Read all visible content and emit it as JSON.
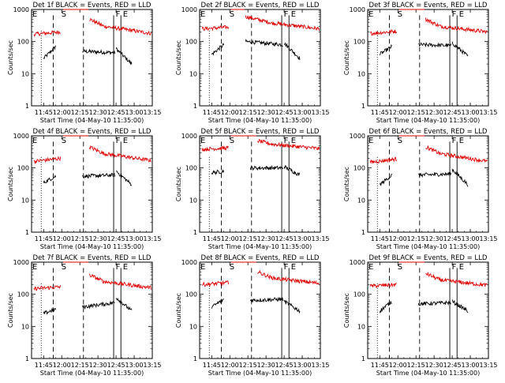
{
  "figure": {
    "xlabel": "Start Time (04-May-10 11:35:00)",
    "ylabel": "Counts/sec",
    "x_tick_labels": [
      "11:45",
      "12:00",
      "12:15",
      "12:30",
      "12:45",
      "13:00",
      "13:15"
    ],
    "y_tick_labels": [
      "1",
      "10",
      "100",
      "1000"
    ],
    "colors": {
      "events": "#000000",
      "lld": "#e00000"
    }
  },
  "chart_data": [
    {
      "type": "line",
      "title": "Det 1f BLACK = Events, RED = LLD",
      "xlabel": "Start Time (04-May-10 11:35:00)",
      "ylabel": "Counts/sec",
      "y_scale": "log",
      "ylim": [
        1,
        1000
      ],
      "x_range_minutes": [
        0,
        100
      ],
      "markers": [
        {
          "label": "E",
          "x": 0
        },
        {
          "label": "S",
          "x": 25
        },
        {
          "label": "F",
          "x": 70
        },
        {
          "label": "E",
          "x": 76
        }
      ],
      "series": [
        {
          "name": "Events",
          "segments": [
            {
              "x": [
                10,
                20
              ],
              "y": [
                30,
                70
              ]
            },
            {
              "x": [
                42,
                69
              ],
              "y": [
                50,
                45
              ]
            },
            {
              "x": [
                70,
                83
              ],
              "y": [
                60,
                20
              ]
            }
          ]
        },
        {
          "name": "LLD",
          "segments": [
            {
              "x": [
                2,
                24
              ],
              "y": [
                170,
                200
              ]
            },
            {
              "x": [
                26,
                47
              ],
              "y": [
                1000,
                1000
              ]
            },
            {
              "x": [
                48,
                60
              ],
              "y": [
                500,
                300
              ]
            },
            {
              "x": [
                60,
                99
              ],
              "y": [
                300,
                180
              ]
            }
          ]
        }
      ]
    },
    {
      "type": "line",
      "title": "Det 2f BLACK = Events, RED = LLD",
      "xlabel": "Start Time (04-May-10 11:35:00)",
      "ylabel": "Counts/sec",
      "y_scale": "log",
      "ylim": [
        1,
        1000
      ],
      "x_range_minutes": [
        0,
        100
      ],
      "markers": [
        {
          "label": "E",
          "x": 0
        },
        {
          "label": "S",
          "x": 25
        },
        {
          "label": "F",
          "x": 70
        },
        {
          "label": "E",
          "x": 76
        }
      ],
      "series": [
        {
          "name": "Events",
          "segments": [
            {
              "x": [
                10,
                20
              ],
              "y": [
                40,
                80
              ]
            },
            {
              "x": [
                38,
                69
              ],
              "y": [
                100,
                80
              ]
            },
            {
              "x": [
                70,
                83
              ],
              "y": [
                90,
                30
              ]
            }
          ]
        },
        {
          "name": "LLD",
          "segments": [
            {
              "x": [
                2,
                24
              ],
              "y": [
                250,
                280
              ]
            },
            {
              "x": [
                26,
                37
              ],
              "y": [
                1000,
                1000
              ]
            },
            {
              "x": [
                38,
                60
              ],
              "y": [
                600,
                380
              ]
            },
            {
              "x": [
                60,
                99
              ],
              "y": [
                380,
                250
              ]
            }
          ]
        }
      ]
    },
    {
      "type": "line",
      "title": "Det 3f BLACK = Events, RED = LLD",
      "xlabel": "Start Time (04-May-10 11:35:00)",
      "ylabel": "Counts/sec",
      "y_scale": "log",
      "ylim": [
        1,
        1000
      ],
      "x_range_minutes": [
        0,
        100
      ],
      "markers": [
        {
          "label": "E",
          "x": 0
        },
        {
          "label": "S",
          "x": 25
        },
        {
          "label": "F",
          "x": 70
        },
        {
          "label": "E",
          "x": 76
        }
      ],
      "series": [
        {
          "name": "Events",
          "segments": [
            {
              "x": [
                10,
                20
              ],
              "y": [
                40,
                70
              ]
            },
            {
              "x": [
                42,
                69
              ],
              "y": [
                80,
                75
              ]
            },
            {
              "x": [
                70,
                83
              ],
              "y": [
                90,
                35
              ]
            }
          ]
        },
        {
          "name": "LLD",
          "segments": [
            {
              "x": [
                2,
                24
              ],
              "y": [
                180,
                210
              ]
            },
            {
              "x": [
                26,
                47
              ],
              "y": [
                1000,
                1000
              ]
            },
            {
              "x": [
                48,
                60
              ],
              "y": [
                500,
                300
              ]
            },
            {
              "x": [
                60,
                99
              ],
              "y": [
                300,
                200
              ]
            }
          ]
        }
      ]
    },
    {
      "type": "line",
      "title": "Det 4f BLACK = Events, RED = LLD",
      "xlabel": "Start Time (04-May-10 11:35:00)",
      "ylabel": "Counts/sec",
      "y_scale": "log",
      "ylim": [
        1,
        1000
      ],
      "x_range_minutes": [
        0,
        100
      ],
      "markers": [
        {
          "label": "E",
          "x": 0
        },
        {
          "label": "S",
          "x": 25
        },
        {
          "label": "F",
          "x": 70
        },
        {
          "label": "E",
          "x": 76
        }
      ],
      "series": [
        {
          "name": "Events",
          "segments": [
            {
              "x": [
                10,
                20
              ],
              "y": [
                35,
                55
              ]
            },
            {
              "x": [
                42,
                69
              ],
              "y": [
                55,
                60
              ]
            },
            {
              "x": [
                70,
                83
              ],
              "y": [
                80,
                30
              ]
            }
          ]
        },
        {
          "name": "LLD",
          "segments": [
            {
              "x": [
                2,
                24
              ],
              "y": [
                160,
                200
              ]
            },
            {
              "x": [
                26,
                47
              ],
              "y": [
                1000,
                1000
              ]
            },
            {
              "x": [
                48,
                60
              ],
              "y": [
                450,
                280
              ]
            },
            {
              "x": [
                60,
                99
              ],
              "y": [
                280,
                170
              ]
            }
          ]
        }
      ]
    },
    {
      "type": "line",
      "title": "Det 5f BLACK = Events, RED = LLD",
      "xlabel": "Start Time (04-May-10 11:35:00)",
      "ylabel": "Counts/sec",
      "y_scale": "log",
      "ylim": [
        1,
        1000
      ],
      "x_range_minutes": [
        0,
        100
      ],
      "markers": [
        {
          "label": "E",
          "x": 0
        },
        {
          "label": "S",
          "x": 25
        },
        {
          "label": "F",
          "x": 70
        },
        {
          "label": "E",
          "x": 76
        }
      ],
      "series": [
        {
          "name": "Events",
          "segments": [
            {
              "x": [
                10,
                20
              ],
              "y": [
                70,
                80
              ]
            },
            {
              "x": [
                42,
                69
              ],
              "y": [
                100,
                100
              ]
            },
            {
              "x": [
                70,
                83
              ],
              "y": [
                110,
                60
              ]
            }
          ]
        },
        {
          "name": "LLD",
          "segments": [
            {
              "x": [
                2,
                24
              ],
              "y": [
                380,
                420
              ]
            },
            {
              "x": [
                26,
                47
              ],
              "y": [
                1000,
                1000
              ]
            },
            {
              "x": [
                48,
                60
              ],
              "y": [
                700,
                550
              ]
            },
            {
              "x": [
                60,
                99
              ],
              "y": [
                550,
                400
              ]
            }
          ]
        }
      ]
    },
    {
      "type": "line",
      "title": "Det 6f BLACK = Events, RED = LLD",
      "xlabel": "Start Time (04-May-10 11:35:00)",
      "ylabel": "Counts/sec",
      "y_scale": "log",
      "ylim": [
        1,
        1000
      ],
      "x_range_minutes": [
        0,
        100
      ],
      "markers": [
        {
          "label": "E",
          "x": 0
        },
        {
          "label": "S",
          "x": 25
        },
        {
          "label": "F",
          "x": 70
        },
        {
          "label": "E",
          "x": 76
        }
      ],
      "series": [
        {
          "name": "Events",
          "segments": [
            {
              "x": [
                10,
                20
              ],
              "y": [
                30,
                60
              ]
            },
            {
              "x": [
                42,
                69
              ],
              "y": [
                60,
                65
              ]
            },
            {
              "x": [
                70,
                83
              ],
              "y": [
                90,
                30
              ]
            }
          ]
        },
        {
          "name": "LLD",
          "segments": [
            {
              "x": [
                2,
                24
              ],
              "y": [
                150,
                190
              ]
            },
            {
              "x": [
                26,
                47
              ],
              "y": [
                1000,
                1000
              ]
            },
            {
              "x": [
                48,
                60
              ],
              "y": [
                450,
                280
              ]
            },
            {
              "x": [
                60,
                99
              ],
              "y": [
                280,
                160
              ]
            }
          ]
        }
      ]
    },
    {
      "type": "line",
      "title": "Det 7f BLACK = Events, RED = LLD",
      "xlabel": "Start Time (04-May-10 11:35:00)",
      "ylabel": "Counts/sec",
      "y_scale": "log",
      "ylim": [
        1,
        1000
      ],
      "x_range_minutes": [
        0,
        100
      ],
      "markers": [
        {
          "label": "E",
          "x": 0
        },
        {
          "label": "S",
          "x": 25
        },
        {
          "label": "F",
          "x": 70
        },
        {
          "label": "E",
          "x": 76
        }
      ],
      "series": [
        {
          "name": "Events",
          "segments": [
            {
              "x": [
                10,
                20
              ],
              "y": [
                25,
                35
              ]
            },
            {
              "x": [
                42,
                69
              ],
              "y": [
                40,
                55
              ]
            },
            {
              "x": [
                70,
                83
              ],
              "y": [
                80,
                30
              ]
            }
          ]
        },
        {
          "name": "LLD",
          "segments": [
            {
              "x": [
                2,
                24
              ],
              "y": [
                150,
                170
              ]
            },
            {
              "x": [
                26,
                47
              ],
              "y": [
                1000,
                1000
              ]
            },
            {
              "x": [
                48,
                60
              ],
              "y": [
                400,
                250
              ]
            },
            {
              "x": [
                60,
                99
              ],
              "y": [
                250,
                160
              ]
            }
          ]
        }
      ]
    },
    {
      "type": "line",
      "title": "Det 8f BLACK = Events, RED = LLD",
      "xlabel": "Start Time (04-May-10 11:35:00)",
      "ylabel": "Counts/sec",
      "y_scale": "log",
      "ylim": [
        1,
        1000
      ],
      "x_range_minutes": [
        0,
        100
      ],
      "markers": [
        {
          "label": "E",
          "x": 0
        },
        {
          "label": "S",
          "x": 25
        },
        {
          "label": "F",
          "x": 70
        },
        {
          "label": "E",
          "x": 76
        }
      ],
      "series": [
        {
          "name": "Events",
          "segments": [
            {
              "x": [
                10,
                20
              ],
              "y": [
                40,
                70
              ]
            },
            {
              "x": [
                42,
                69
              ],
              "y": [
                65,
                70
              ]
            },
            {
              "x": [
                70,
                83
              ],
              "y": [
                60,
                30
              ]
            }
          ]
        },
        {
          "name": "LLD",
          "segments": [
            {
              "x": [
                2,
                24
              ],
              "y": [
                200,
                230
              ]
            },
            {
              "x": [
                26,
                47
              ],
              "y": [
                1000,
                1000
              ]
            },
            {
              "x": [
                48,
                60
              ],
              "y": [
                500,
                320
              ]
            },
            {
              "x": [
                60,
                99
              ],
              "y": [
                320,
                220
              ]
            }
          ]
        }
      ]
    },
    {
      "type": "line",
      "title": "Det 9f BLACK = Events, RED = LLD",
      "xlabel": "Start Time (04-May-10 11:35:00)",
      "ylabel": "Counts/sec",
      "y_scale": "log",
      "ylim": [
        1,
        1000
      ],
      "x_range_minutes": [
        0,
        100
      ],
      "markers": [
        {
          "label": "E",
          "x": 0
        },
        {
          "label": "S",
          "x": 25
        },
        {
          "label": "F",
          "x": 70
        },
        {
          "label": "E",
          "x": 76
        }
      ],
      "series": [
        {
          "name": "Events",
          "segments": [
            {
              "x": [
                10,
                20
              ],
              "y": [
                30,
                60
              ]
            },
            {
              "x": [
                42,
                69
              ],
              "y": [
                50,
                55
              ]
            },
            {
              "x": [
                70,
                83
              ],
              "y": [
                60,
                30
              ]
            }
          ]
        },
        {
          "name": "LLD",
          "segments": [
            {
              "x": [
                2,
                24
              ],
              "y": [
                180,
                200
              ]
            },
            {
              "x": [
                26,
                47
              ],
              "y": [
                1000,
                1000
              ]
            },
            {
              "x": [
                48,
                60
              ],
              "y": [
                450,
                280
              ]
            },
            {
              "x": [
                60,
                99
              ],
              "y": [
                280,
                190
              ]
            }
          ]
        }
      ]
    }
  ]
}
